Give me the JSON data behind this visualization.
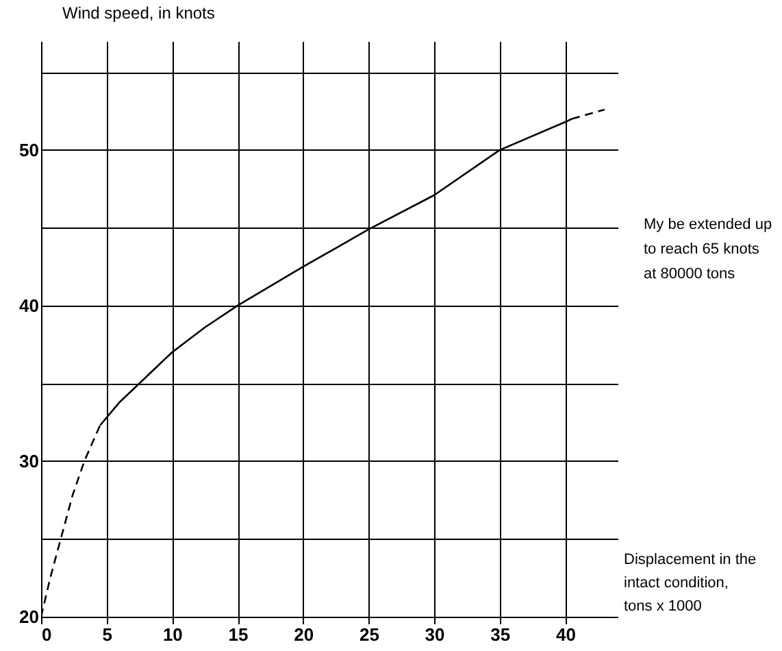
{
  "chart_data": {
    "type": "line",
    "xlabel": "Displacement in the intact condition, tons x 1000",
    "ylabel": "Wind speed, in knots",
    "annotations": [
      "My be extended up to reach 65 knots at 80000 tons"
    ],
    "xlim": [
      0,
      44
    ],
    "xticks": [
      0,
      5,
      10,
      15,
      20,
      25,
      30,
      35,
      40
    ],
    "ylim": [
      20,
      57
    ],
    "yticks": [
      20,
      {
        "value": 25,
        "label": null
      },
      30,
      {
        "value": 35,
        "label": null
      },
      40,
      {
        "value": 45,
        "label": null
      },
      50,
      {
        "value": 55,
        "label": null
      }
    ],
    "grid": true,
    "marker": "none",
    "series": [
      {
        "color": "#000000",
        "line_style": "dashed",
        "x": [
          0,
          0.7,
          1.5,
          2.4,
          3.3,
          4.5
        ],
        "values": [
          20,
          22.5,
          25,
          27.8,
          30,
          32.3
        ]
      },
      {
        "color": "#000000",
        "line_style": "solid",
        "x": [
          4.5,
          6,
          7.5,
          10,
          12.5,
          15,
          20,
          25,
          30,
          35,
          40,
          40.5
        ],
        "values": [
          32.3,
          33.8,
          35,
          37,
          38.6,
          40,
          42.5,
          44.9,
          47.1,
          50,
          51.8,
          52
        ]
      },
      {
        "color": "#000000",
        "line_style": "dashed",
        "x": [
          40.5,
          43
        ],
        "values": [
          52,
          52.6
        ]
      }
    ]
  }
}
